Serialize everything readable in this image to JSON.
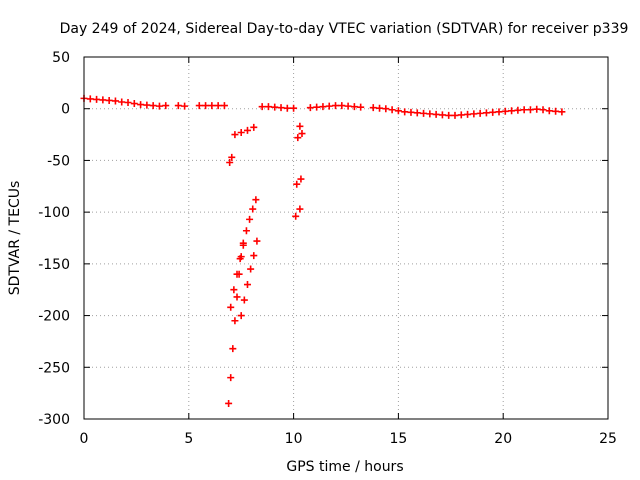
{
  "chart_data": {
    "type": "scatter",
    "title": "Day 249 of 2024, Sidereal Day-to-day VTEC variation (SDTVAR) for receiver p339",
    "xlabel": "GPS time / hours",
    "ylabel": "SDTVAR / TECUs",
    "xlim": [
      0,
      25
    ],
    "ylim": [
      -300,
      50
    ],
    "xticks": [
      0,
      5,
      10,
      15,
      20,
      25
    ],
    "yticks": [
      -300,
      -250,
      -200,
      -150,
      -100,
      -50,
      0,
      50
    ],
    "grid": true,
    "marker": "plus",
    "color": "#ff0000",
    "series": [
      {
        "name": "SDTVAR",
        "segments": [
          {
            "x": [
              0.0,
              0.3,
              0.6,
              0.9,
              1.2,
              1.5
            ],
            "y": [
              10,
              9.5,
              9,
              8.5,
              8,
              7.5
            ]
          },
          {
            "x": [
              1.8,
              2.1,
              2.4,
              2.7,
              3.0,
              3.3,
              3.6,
              3.9
            ],
            "y": [
              6.5,
              6,
              5,
              4,
              3.5,
              3,
              2.5,
              3
            ]
          },
          {
            "x": [
              4.5,
              4.8
            ],
            "y": [
              3,
              2.5
            ]
          },
          {
            "x": [
              5.5,
              5.8,
              6.1,
              6.4,
              6.7
            ],
            "y": [
              3,
              3,
              3,
              3,
              3
            ]
          },
          {
            "x": [
              6.9,
              7.0,
              7.1,
              7.2,
              7.3,
              7.4,
              7.5,
              7.6
            ],
            "y": [
              -285,
              -260,
              -232,
              -205,
              -182,
              -160,
              -143,
              -130
            ]
          },
          {
            "x": [
              7.0,
              7.15,
              7.3,
              7.45,
              7.6,
              7.75,
              7.9,
              8.05,
              8.2
            ],
            "y": [
              -192,
              -175,
              -160,
              -145,
              -132,
              -118,
              -107,
              -97,
              -88
            ]
          },
          {
            "x": [
              7.5,
              7.65,
              7.8,
              7.95,
              8.1,
              8.25
            ],
            "y": [
              -200,
              -185,
              -170,
              -155,
              -142,
              -128
            ]
          },
          {
            "x": [
              6.95,
              7.05
            ],
            "y": [
              -52,
              -47
            ]
          },
          {
            "x": [
              7.2,
              7.5,
              7.8,
              8.1
            ],
            "y": [
              -25,
              -23,
              -21,
              -18
            ]
          },
          {
            "x": [
              8.5,
              8.8,
              9.1,
              9.4,
              9.7,
              10.0
            ],
            "y": [
              2,
              2,
              1.5,
              1,
              0.5,
              0.5
            ]
          },
          {
            "x": [
              10.1,
              10.3
            ],
            "y": [
              -104,
              -97
            ]
          },
          {
            "x": [
              10.15,
              10.35
            ],
            "y": [
              -73,
              -68
            ]
          },
          {
            "x": [
              10.2,
              10.4
            ],
            "y": [
              -28,
              -24
            ]
          },
          {
            "x": [
              10.3
            ],
            "y": [
              -17
            ]
          },
          {
            "x": [
              10.8,
              11.1,
              11.4,
              11.7,
              12.0,
              12.3,
              12.6,
              12.9,
              13.2
            ],
            "y": [
              1,
              1.5,
              2,
              2.5,
              3,
              3,
              2.5,
              2,
              1.5
            ]
          },
          {
            "x": [
              13.8,
              14.1,
              14.4,
              14.7,
              15.0,
              15.3,
              15.6,
              15.9,
              16.2,
              16.5,
              16.8,
              17.1,
              17.4,
              17.7,
              18.0,
              18.3,
              18.6,
              18.9,
              19.2,
              19.5,
              19.8,
              20.1,
              20.4,
              20.7,
              21.0,
              21.3,
              21.6,
              21.9
            ],
            "y": [
              1,
              0.5,
              0,
              -1,
              -2,
              -3,
              -3.5,
              -4,
              -4.5,
              -5,
              -5.5,
              -6,
              -6.5,
              -6.5,
              -6,
              -5.5,
              -5,
              -4.5,
              -4,
              -3.5,
              -3,
              -2.5,
              -2,
              -1.5,
              -1,
              -1,
              -0.5,
              -1
            ]
          },
          {
            "x": [
              22.2,
              22.5,
              22.8
            ],
            "y": [
              -2,
              -2.5,
              -3
            ]
          }
        ]
      }
    ]
  }
}
